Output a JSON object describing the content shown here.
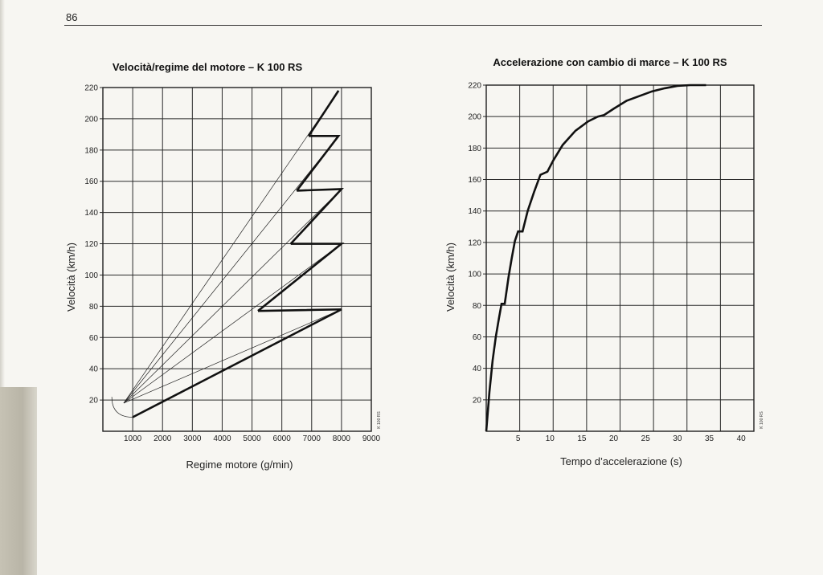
{
  "page": {
    "number": "86"
  },
  "chart_data": [
    {
      "type": "line",
      "title": "Velocità/regime del motore – K 100 RS",
      "xlabel": "Regime motore (g/min)",
      "ylabel": "Velocità (km/h)",
      "xlim": [
        0,
        9000
      ],
      "ylim": [
        0,
        220
      ],
      "x_ticks": [
        "1000",
        "2000",
        "3000",
        "4000",
        "5000",
        "6000",
        "7000",
        "8000",
        "9000"
      ],
      "y_ticks": [
        "20",
        "40",
        "60",
        "80",
        "100",
        "120",
        "140",
        "160",
        "180",
        "200",
        "220"
      ],
      "grid": true,
      "stamp": "K 100 RS",
      "series": [
        {
          "values": [
            [
              1000,
              9
            ],
            [
              8000,
              78
            ],
            [
              5200,
              77
            ]
          ]
        },
        {
          "values": [
            [
              5200,
              77
            ],
            [
              8000,
              120
            ],
            [
              6300,
              120
            ]
          ]
        },
        {
          "values": [
            [
              6300,
              120
            ],
            [
              8000,
              155
            ],
            [
              6500,
              154
            ]
          ]
        },
        {
          "values": [
            [
              6500,
              154
            ],
            [
              7900,
              189
            ],
            [
              6900,
              189
            ]
          ]
        },
        {
          "values": [
            [
              6900,
              189
            ],
            [
              7900,
              218
            ]
          ]
        }
      ],
      "reference_lines": [
        {
          "values": [
            [
              700,
              18
            ],
            [
              7900,
              218
            ]
          ]
        },
        {
          "values": [
            [
              700,
              18
            ],
            [
              7900,
              189
            ]
          ]
        },
        {
          "values": [
            [
              700,
              18
            ],
            [
              8000,
              155
            ]
          ]
        },
        {
          "values": [
            [
              700,
              18
            ],
            [
              8000,
              120
            ]
          ]
        },
        {
          "values": [
            [
              700,
              18
            ],
            [
              8000,
              78
            ]
          ]
        }
      ],
      "idle_arc": {
        "x_range": [
          300,
          1000
        ],
        "y_range": [
          9,
          22
        ]
      }
    },
    {
      "type": "line",
      "title": "Accelerazione con cambio di marce – K 100 RS",
      "xlabel": "Tempo d’accelerazione (s)",
      "ylabel": "Velocità (km/h)",
      "xlim": [
        0,
        42
      ],
      "ylim": [
        0,
        220
      ],
      "x_ticks": [
        "5",
        "10",
        "15",
        "20",
        "25",
        "30",
        "35",
        "40"
      ],
      "y_ticks": [
        "20",
        "40",
        "60",
        "80",
        "100",
        "120",
        "140",
        "160",
        "180",
        "200",
        "220"
      ],
      "grid": true,
      "stamp": "K 100 RS",
      "series": [
        {
          "values": [
            [
              0,
              0
            ],
            [
              0.5,
              25
            ],
            [
              1,
              45
            ],
            [
              1.5,
              60
            ],
            [
              2,
              72
            ],
            [
              2.4,
              81
            ],
            [
              2.9,
              81
            ],
            [
              3.5,
              98
            ],
            [
              4,
              110
            ],
            [
              4.5,
              121
            ],
            [
              5,
              127
            ],
            [
              5.7,
              127
            ],
            [
              6.5,
              140
            ],
            [
              7.5,
              152
            ],
            [
              8.5,
              163
            ],
            [
              9.6,
              165
            ],
            [
              10.5,
              172
            ],
            [
              12,
              182
            ],
            [
              14,
              191
            ],
            [
              16,
              197
            ],
            [
              17.5,
              200
            ],
            [
              18.5,
              201
            ],
            [
              20,
              205
            ],
            [
              22,
              210
            ],
            [
              24,
              213
            ],
            [
              26,
              216
            ],
            [
              28,
              218
            ],
            [
              30,
              219.5
            ],
            [
              32,
              220
            ],
            [
              34.5,
              220
            ]
          ]
        }
      ]
    }
  ]
}
